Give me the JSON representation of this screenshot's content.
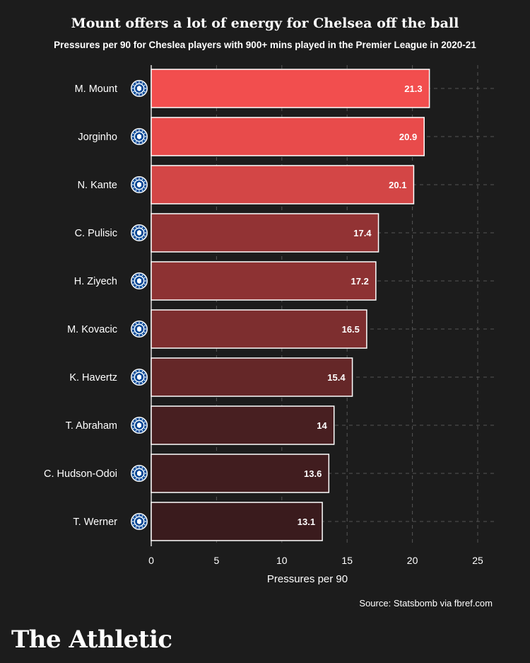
{
  "header": {
    "title": "Mount offers a lot of energy for Chelsea off the ball",
    "subtitle": "Pressures per 90 for Cheslea players with 900+ mins played in the Premier League in 2020-21"
  },
  "footer": {
    "source": "Source: Statsbomb via fbref.com",
    "brand": "The Athletic"
  },
  "colors": {
    "background": "#1c1c1c",
    "bar_high": "#f24e4e",
    "bar_low": "#3a1b1d",
    "bar_border": "#ffffff",
    "grid": "#555555"
  },
  "icons": {
    "team_badge": "chelsea-crest-icon"
  },
  "chart_data": {
    "type": "bar",
    "orientation": "horizontal",
    "title": "Mount offers a lot of energy for Chelsea off the ball",
    "subtitle": "Pressures per 90 for Cheslea players with 900+ mins played in the Premier League in 2020-21",
    "xlabel": "Pressures per 90",
    "ylabel": "",
    "xlim": [
      0,
      25
    ],
    "xticks": [
      "0",
      "5",
      "10",
      "15",
      "20",
      "25"
    ],
    "grid": true,
    "categories": [
      "M. Mount",
      "Jorginho",
      "N. Kante",
      "C. Pulisic",
      "H. Ziyech",
      "M. Kovacic",
      "K. Havertz",
      "T. Abraham",
      "C. Hudson-Odoi",
      "T. Werner"
    ],
    "values": [
      21.3,
      20.9,
      20.1,
      17.4,
      17.2,
      16.5,
      15.4,
      14,
      13.6,
      13.1
    ],
    "value_labels": [
      "21.3",
      "20.9",
      "20.1",
      "17.4",
      "17.2",
      "16.5",
      "15.4",
      "14",
      "13.6",
      "13.1"
    ]
  }
}
